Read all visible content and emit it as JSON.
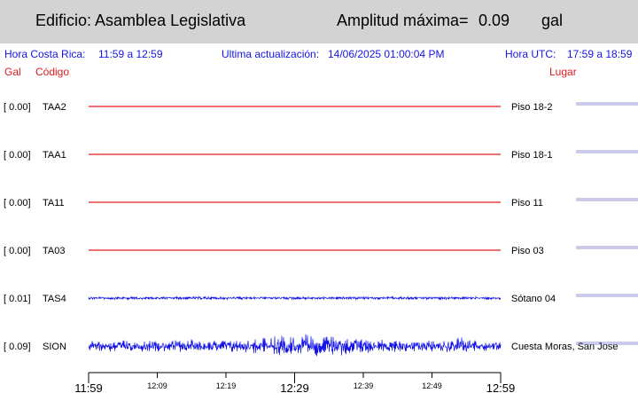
{
  "header": {
    "building": "Edificio: Asamblea Legislativa",
    "amp_label": "Amplitud máxima=",
    "amp_value": "0.09",
    "amp_unit": "gal"
  },
  "info": {
    "cr_label": "Hora Costa Rica:",
    "cr_range": "11:59 a 12:59",
    "update_label": "Ultima actualización:",
    "update_value": "14/06/2025 01:00:04 PM",
    "utc_label": "Hora UTC:",
    "utc_range": "17:59 a 18:59"
  },
  "columns": {
    "gal": "Gal",
    "code": "Código",
    "place": "Lugar"
  },
  "colors": {
    "header_bg": "#d3d3d3",
    "flat_trace": "#e31a1c",
    "active_trace": "#1414e6",
    "info_text": "#1414e6",
    "column_text": "#e31a1c"
  },
  "chart_data": {
    "type": "line",
    "x_unit": "local time",
    "xlim": [
      "11:59",
      "12:59"
    ],
    "major_ticks": [
      "11:59",
      "12:29",
      "12:59"
    ],
    "minor_ticks": [
      "12:09",
      "12:19",
      "12:39",
      "12:49"
    ],
    "series": [
      {
        "gal": "[  0.00]",
        "name": "TAA2",
        "place": "Piso 18-2",
        "peak_gal": 0.0,
        "color": "#e31a1c"
      },
      {
        "gal": "[  0.00]",
        "name": "TAA1",
        "place": "Piso 18-1",
        "peak_gal": 0.0,
        "color": "#e31a1c"
      },
      {
        "gal": "[  0.00]",
        "name": "TA11",
        "place": "Piso 11",
        "peak_gal": 0.0,
        "color": "#e31a1c"
      },
      {
        "gal": "[  0.00]",
        "name": "TA03",
        "place": "Piso 03",
        "peak_gal": 0.0,
        "color": "#e31a1c"
      },
      {
        "gal": "[  0.01]",
        "name": "TAS4",
        "place": "Sótano 04",
        "peak_gal": 0.01,
        "color": "#1414e6"
      },
      {
        "gal": "[  0.09]",
        "name": "SION",
        "place": "Cuesta Moras, San Jose",
        "peak_gal": 0.09,
        "color": "#1414e6"
      }
    ]
  }
}
